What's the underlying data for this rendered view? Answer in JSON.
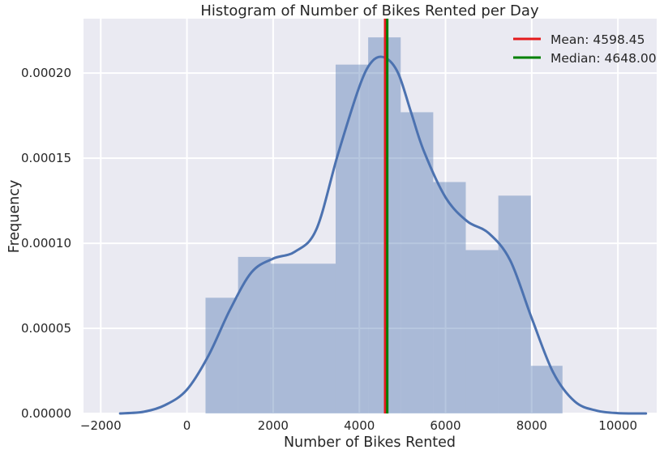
{
  "chart_data": {
    "type": "bar",
    "title": "Histogram of Number of Bikes Rented per Day",
    "xlabel": "Number of Bikes Rented",
    "ylabel": "Frequency",
    "xlim": [
      -2400,
      10900
    ],
    "ylim": [
      0,
      0.000232
    ],
    "xticks": [
      -2000,
      0,
      2000,
      4000,
      6000,
      8000,
      10000
    ],
    "xtick_labels": [
      "−2000",
      "0",
      "2000",
      "4000",
      "6000",
      "8000",
      "10000"
    ],
    "yticks": [
      0,
      5e-05,
      0.0001,
      0.00015,
      0.0002
    ],
    "ytick_labels": [
      "0.00000",
      "0.00005",
      "0.00010",
      "0.00015",
      "0.00020"
    ],
    "grid": true,
    "bar_color": "#4c72b0",
    "bins": [
      {
        "x0": 431,
        "x1": 1186,
        "value": 6.8e-05
      },
      {
        "x0": 1186,
        "x1": 1941,
        "value": 9.2e-05
      },
      {
        "x0": 1941,
        "x1": 3450,
        "value": 8.8e-05
      },
      {
        "x0": 3450,
        "x1": 4205,
        "value": 0.000205
      },
      {
        "x0": 4205,
        "x1": 4960,
        "value": 0.000221
      },
      {
        "x0": 4960,
        "x1": 5715,
        "value": 0.000177
      },
      {
        "x0": 5715,
        "x1": 6470,
        "value": 0.000136
      },
      {
        "x0": 6470,
        "x1": 7225,
        "value": 9.6e-05
      },
      {
        "x0": 7225,
        "x1": 7980,
        "value": 0.000128
      },
      {
        "x0": 7980,
        "x1": 8714,
        "value": 2.8e-05
      }
    ],
    "kde": {
      "color": "#4c72b0",
      "x": [
        -1550,
        -1000,
        -500,
        0,
        500,
        1000,
        1500,
        2000,
        2500,
        3000,
        3500,
        4000,
        4300,
        4600,
        4900,
        5200,
        5500,
        6000,
        6500,
        7000,
        7500,
        8000,
        8500,
        9000,
        9500,
        10000,
        10650
      ],
      "y": [
        0,
        1e-06,
        5e-06,
        1.4e-05,
        3.4e-05,
        6.1e-05,
        8.3e-05,
        9.1e-05,
        9.5e-05,
        0.000108,
        0.000152,
        0.000192,
        0.000207,
        0.000209,
        0.0002,
        0.000177,
        0.000154,
        0.000127,
        0.000113,
        0.000106,
        9e-05,
        5.6e-05,
        2.4e-05,
        7e-06,
        1.7e-06,
        2e-07,
        0
      ]
    },
    "vlines": [
      {
        "name": "Mean: 4598.45",
        "x": 4598.45,
        "color": "#e41a1c"
      },
      {
        "name": "Median: 4648.00",
        "x": 4648.0,
        "color": "#008000"
      }
    ],
    "legend": {
      "placement": "top-right",
      "entries": [
        {
          "label": "Mean: 4598.45",
          "color": "#e41a1c"
        },
        {
          "label": "Median: 4648.00",
          "color": "#008000"
        }
      ]
    }
  }
}
